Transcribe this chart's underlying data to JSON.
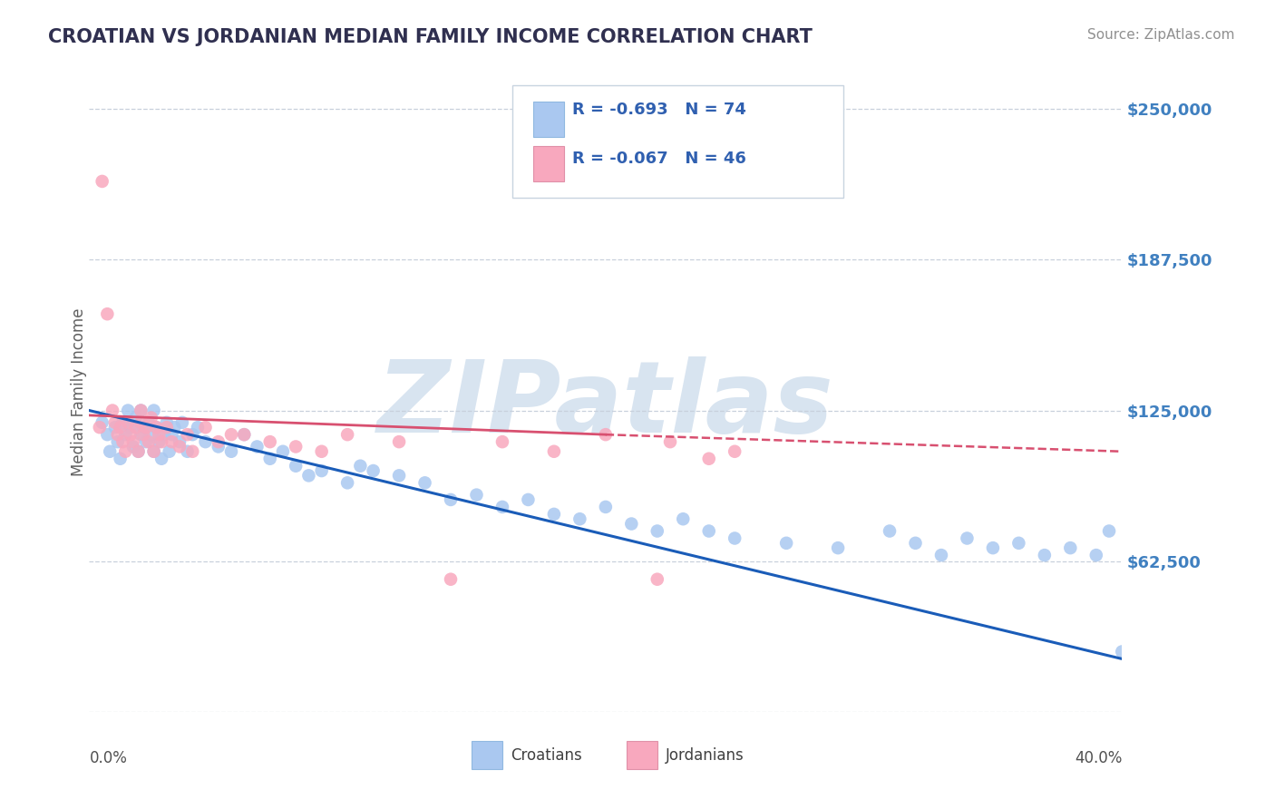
{
  "title": "CROATIAN VS JORDANIAN MEDIAN FAMILY INCOME CORRELATION CHART",
  "source": "Source: ZipAtlas.com",
  "ylabel": "Median Family Income",
  "yticks": [
    0,
    62500,
    125000,
    187500,
    250000
  ],
  "ytick_labels": [
    "",
    "$62,500",
    "$125,000",
    "$187,500",
    "$250,000"
  ],
  "xlim": [
    0.0,
    40.0
  ],
  "ylim": [
    0,
    265000
  ],
  "croatian_R": -0.693,
  "croatian_N": 74,
  "jordanian_R": -0.067,
  "jordanian_N": 46,
  "croatian_color": "#aac8f0",
  "jordanian_color": "#f8a8be",
  "croatian_line_color": "#1a5cb8",
  "jordanian_line_color": "#d85070",
  "title_color": "#303050",
  "source_color": "#909090",
  "axis_label_color": "#4080c0",
  "legend_r_color": "#3060b0",
  "legend_n_color": "#3060b0",
  "grid_color": "#c8d0dc",
  "watermark_color": "#d8e4f0",
  "watermark_text": "ZIPatlas",
  "croatians_x": [
    0.5,
    0.7,
    0.8,
    1.0,
    1.1,
    1.2,
    1.3,
    1.4,
    1.5,
    1.6,
    1.7,
    1.8,
    1.9,
    2.0,
    2.0,
    2.1,
    2.2,
    2.3,
    2.4,
    2.5,
    2.5,
    2.6,
    2.7,
    2.8,
    2.9,
    3.0,
    3.1,
    3.2,
    3.3,
    3.5,
    3.6,
    3.8,
    4.0,
    4.2,
    4.5,
    5.0,
    5.5,
    6.0,
    6.5,
    7.0,
    7.5,
    8.0,
    8.5,
    9.0,
    10.0,
    10.5,
    11.0,
    12.0,
    13.0,
    14.0,
    15.0,
    16.0,
    17.0,
    18.0,
    19.0,
    20.0,
    21.0,
    22.0,
    23.0,
    24.0,
    25.0,
    27.0,
    29.0,
    31.0,
    32.0,
    33.0,
    34.0,
    35.0,
    36.0,
    37.0,
    38.0,
    39.0,
    39.5,
    40.0
  ],
  "croatians_y": [
    120000,
    115000,
    108000,
    118000,
    112000,
    105000,
    120000,
    115000,
    125000,
    118000,
    110000,
    122000,
    108000,
    115000,
    125000,
    118000,
    112000,
    120000,
    115000,
    108000,
    125000,
    118000,
    112000,
    105000,
    115000,
    120000,
    108000,
    115000,
    118000,
    112000,
    120000,
    108000,
    115000,
    118000,
    112000,
    110000,
    108000,
    115000,
    110000,
    105000,
    108000,
    102000,
    98000,
    100000,
    95000,
    102000,
    100000,
    98000,
    95000,
    88000,
    90000,
    85000,
    88000,
    82000,
    80000,
    85000,
    78000,
    75000,
    80000,
    75000,
    72000,
    70000,
    68000,
    75000,
    70000,
    65000,
    72000,
    68000,
    70000,
    65000,
    68000,
    65000,
    75000,
    25000
  ],
  "jordanians_x": [
    0.5,
    0.7,
    0.9,
    1.0,
    1.1,
    1.2,
    1.3,
    1.4,
    1.5,
    1.6,
    1.7,
    1.8,
    1.9,
    2.0,
    2.1,
    2.2,
    2.3,
    2.4,
    2.5,
    2.6,
    2.7,
    2.8,
    3.0,
    3.2,
    3.5,
    3.8,
    4.0,
    4.5,
    5.0,
    5.5,
    6.0,
    7.0,
    8.0,
    9.0,
    10.0,
    12.0,
    14.0,
    16.0,
    18.0,
    20.0,
    22.0,
    22.5,
    24.0,
    25.0,
    0.4,
    2.0
  ],
  "jordanians_y": [
    220000,
    165000,
    125000,
    120000,
    115000,
    118000,
    112000,
    108000,
    120000,
    115000,
    112000,
    118000,
    108000,
    120000,
    115000,
    118000,
    112000,
    122000,
    108000,
    118000,
    115000,
    112000,
    118000,
    112000,
    110000,
    115000,
    108000,
    118000,
    112000,
    115000,
    115000,
    112000,
    110000,
    108000,
    115000,
    112000,
    55000,
    112000,
    108000,
    115000,
    55000,
    112000,
    105000,
    108000,
    118000,
    125000
  ]
}
